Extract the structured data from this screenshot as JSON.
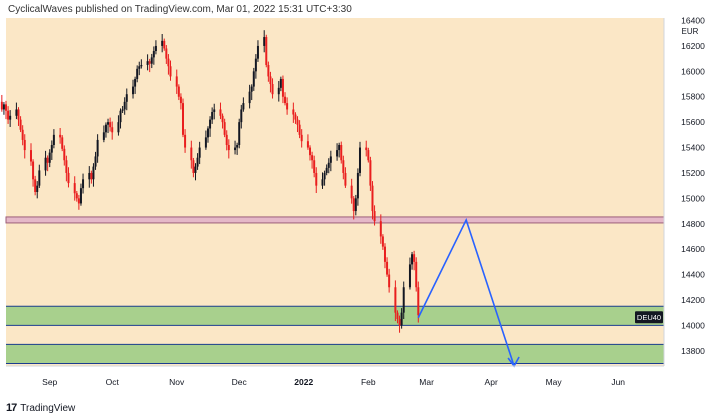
{
  "header": {
    "text": "CyclicalWaves published on TradingView.com, Mar 01, 2022 15:31 UTC+3:30"
  },
  "footer": {
    "logo_text": "17",
    "brand": "TradingView"
  },
  "colors": {
    "background": "#fbe7c6",
    "candle_up": "#131722",
    "candle_down": "#e91e1e",
    "resistance_band": "#9c5f7a",
    "support_zone_fill": "#a8d08d",
    "support_zone_border": "#1a3c8f",
    "projection": "#2962ff",
    "badge_bg": "#131722"
  },
  "chart_data": {
    "type": "candlestick",
    "symbol_badge": "DEU40",
    "currency": "EUR",
    "y_ticks": [
      16400,
      16200,
      16000,
      15800,
      15600,
      15400,
      15200,
      15000,
      14800,
      14600,
      14400,
      14200,
      14000,
      13800
    ],
    "ylim": [
      13680,
      16420
    ],
    "x_ticks": [
      "Sep",
      "Oct",
      "Nov",
      "Dec",
      "2022",
      "Feb",
      "Mar",
      "Apr",
      "May",
      "Jun"
    ],
    "x_tick_dates": [
      "2021-09-01",
      "2021-10-01",
      "2021-11-01",
      "2021-12-01",
      "2022-01-01",
      "2022-02-01",
      "2022-03-01",
      "2022-04-01",
      "2022-05-01",
      "2022-06-01"
    ],
    "xlim": [
      "2021-08-11",
      "2022-06-23"
    ],
    "closes": [
      15960,
      15920,
      15880,
      15810,
      15860,
      15930,
      15880,
      15920,
      15950,
      15900,
      15850,
      15880,
      15820,
      15760,
      15700,
      15740,
      15690,
      15620,
      15650,
      15700,
      15620,
      15540,
      15460,
      15380,
      15290,
      15150,
      15050,
      15100,
      15220,
      15320,
      15280,
      15360,
      15420,
      15500,
      15480,
      15390,
      15300,
      15200,
      15120,
      15040,
      15000,
      14960,
      15080,
      15150,
      15200,
      15150,
      15250,
      15330,
      15460,
      15520,
      15580,
      15600,
      15560,
      15520,
      15600,
      15690,
      15700,
      15760,
      15820,
      15880,
      15940,
      16020,
      16040,
      16050,
      16080,
      16060,
      16110,
      16160,
      16200,
      16240,
      16180,
      16100,
      16040,
      15960,
      15880,
      15800,
      15750,
      15500,
      15400,
      15300,
      15200,
      15250,
      15320,
      15400,
      15480,
      15550,
      15620,
      15680,
      15700,
      15650,
      15600,
      15500,
      15420,
      15380,
      15400,
      15420,
      15600,
      15700,
      15750,
      15840,
      15880,
      16000,
      16100,
      16200,
      16270,
      16050,
      15960,
      15900,
      15820,
      15870,
      15940,
      15800,
      15750,
      15700,
      15660,
      15620,
      15580,
      15500,
      15450,
      15400,
      15340,
      15300,
      15200,
      15100,
      15150,
      15200,
      15240,
      15280,
      15330,
      15380,
      15420,
      15300,
      15200,
      15100,
      15000,
      14900,
      15000,
      15200,
      15400,
      15380,
      15300,
      15100,
      14900,
      14820,
      14700,
      14620,
      14500,
      14400,
      14300,
      14100,
      14050,
      14000,
      14100,
      14300,
      14480,
      14560,
      14500,
      14300,
      14080
    ],
    "last_date": "2022-02-25",
    "resistance_level": 14830,
    "support_zones": [
      [
        14000,
        14150
      ],
      [
        13700,
        13850
      ]
    ],
    "projection_path": [
      {
        "date": "2022-02-25",
        "price": 14060
      },
      {
        "date": "2022-03-20",
        "price": 14830
      },
      {
        "date": "2022-04-12",
        "price": 13680
      }
    ]
  }
}
